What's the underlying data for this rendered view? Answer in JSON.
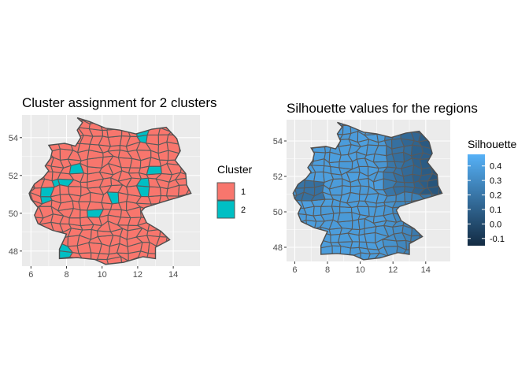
{
  "chart_data": [
    {
      "type": "map",
      "title": "Cluster assignment for 2 clusters",
      "xticks": [
        6,
        8,
        10,
        12,
        14
      ],
      "yticks": [
        48,
        50,
        52,
        54
      ],
      "xlim": [
        5.5,
        15.5
      ],
      "ylim": [
        47.2,
        55.2
      ],
      "fill_encoding": "categorical",
      "legend": {
        "title": "Cluster",
        "position": "right",
        "items": [
          {
            "label": "1",
            "color": "#F8766D"
          },
          {
            "label": "2",
            "color": "#00BFC4"
          }
        ]
      },
      "cluster_counts_visible": {
        "1": "majority",
        "2": "few scattered regions (west, north-east, centre)"
      },
      "grid": true
    },
    {
      "type": "map",
      "title": "Silhouette values for the regions",
      "xticks": [
        6,
        8,
        10,
        12,
        14
      ],
      "yticks": [
        48,
        50,
        52,
        54
      ],
      "xlim": [
        5.5,
        15.5
      ],
      "ylim": [
        47.2,
        55.2
      ],
      "fill_encoding": "continuous",
      "legend": {
        "title": "Silhouette",
        "position": "right",
        "labels": [
          "0.4",
          "0.3",
          "0.2",
          "0.1",
          "0.0",
          "-0.1"
        ],
        "values": [
          0.4,
          0.3,
          0.2,
          0.1,
          0.0,
          -0.1
        ],
        "range": [
          -0.15,
          0.48
        ],
        "color_low": "#132B43",
        "color_high": "#56B1F7"
      },
      "grid": true
    }
  ]
}
